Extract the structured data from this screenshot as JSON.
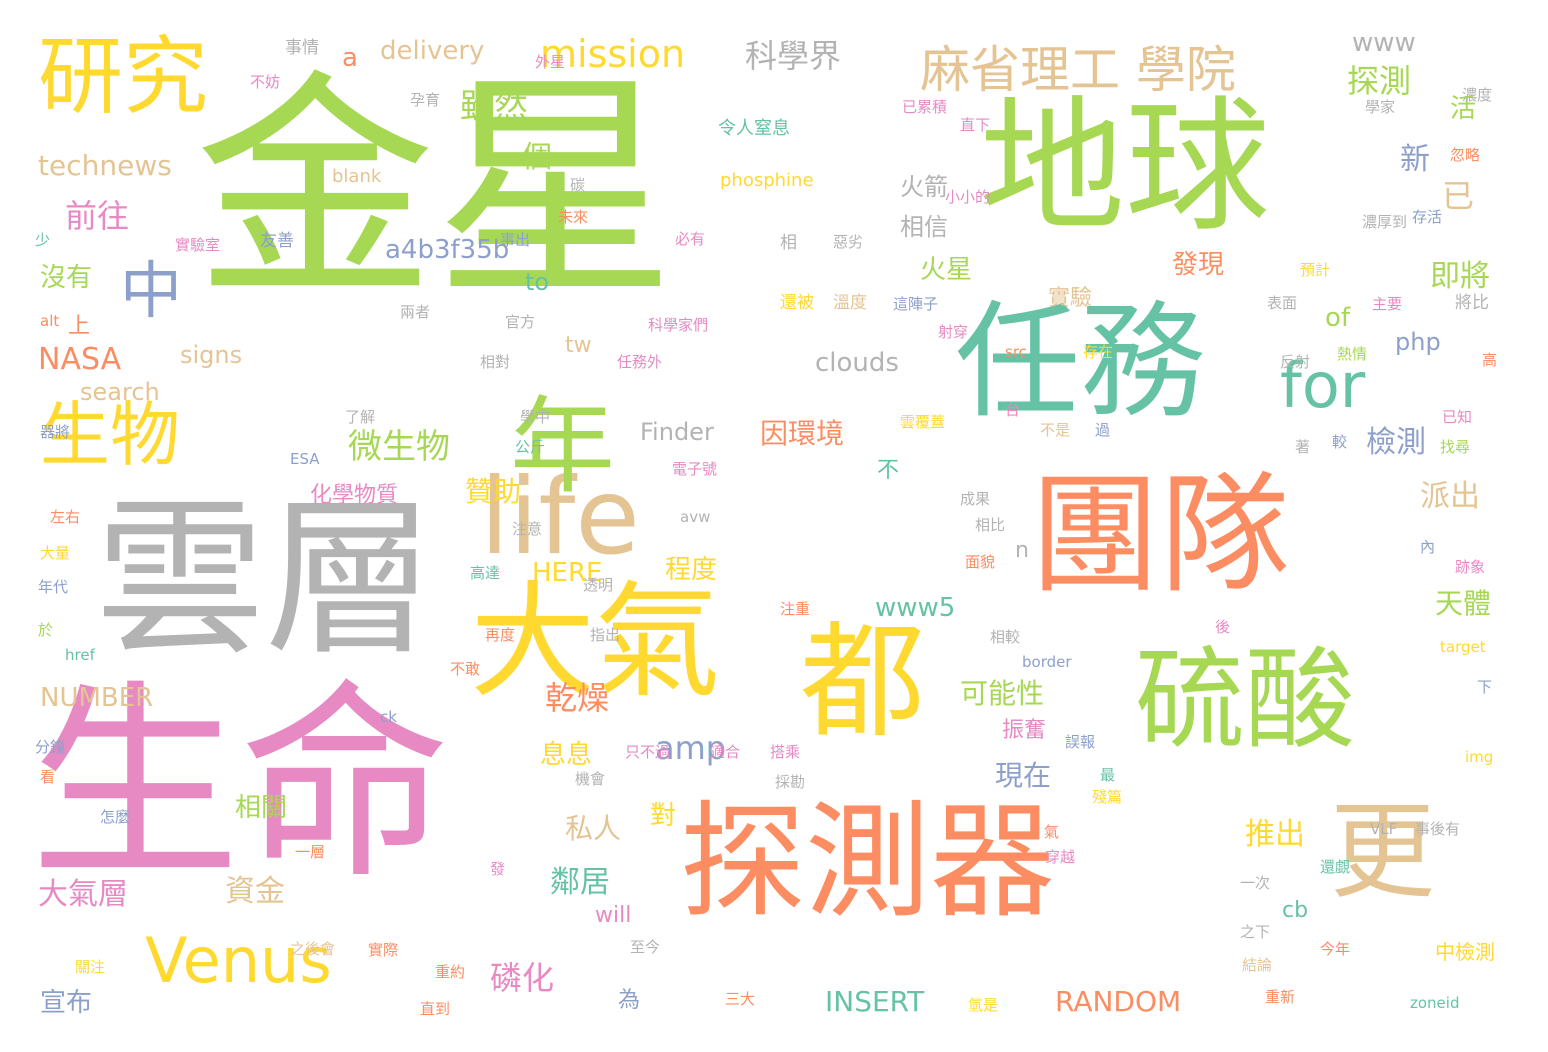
{
  "palette": {
    "green": "#a6d854",
    "orange": "#fc8d62",
    "yellow": "#ffd92f",
    "teal": "#66c2a5",
    "pink": "#e78ac3",
    "tan": "#e5c494",
    "gray": "#b3b3b3",
    "blue": "#8da0cb"
  },
  "words": [
    {
      "text": "金星",
      "color": "green"
    },
    {
      "text": "生命",
      "color": "pink"
    },
    {
      "text": "雲層",
      "color": "gray"
    },
    {
      "text": "地球",
      "color": "green"
    },
    {
      "text": "團隊",
      "color": "orange"
    },
    {
      "text": "任務",
      "color": "teal"
    },
    {
      "text": "探測器",
      "color": "orange"
    },
    {
      "text": "大氣",
      "color": "yellow"
    },
    {
      "text": "都",
      "color": "yellow"
    },
    {
      "text": "硫酸",
      "color": "green"
    },
    {
      "text": "更",
      "color": "tan"
    },
    {
      "text": "life",
      "color": "tan"
    },
    {
      "text": "年",
      "color": "green"
    },
    {
      "text": "研究",
      "color": "yellow"
    },
    {
      "text": "生物",
      "color": "yellow"
    },
    {
      "text": "Venus",
      "color": "yellow"
    },
    {
      "text": "for",
      "color": "teal"
    },
    {
      "text": "中",
      "color": "blue"
    },
    {
      "text": "麻省理工 學院",
      "color": "tan"
    },
    {
      "text": "mission",
      "color": "yellow"
    },
    {
      "text": "科學界",
      "color": "gray"
    },
    {
      "text": "delivery",
      "color": "tan"
    },
    {
      "text": "a",
      "color": "orange"
    },
    {
      "text": "事情",
      "color": "gray"
    },
    {
      "text": "雖然",
      "color": "green"
    },
    {
      "text": "一個",
      "color": "green"
    },
    {
      "text": "technews",
      "color": "tan"
    },
    {
      "text": "前往",
      "color": "pink"
    },
    {
      "text": "a4b3f35b",
      "color": "blue"
    },
    {
      "text": "微生物",
      "color": "green"
    },
    {
      "text": "火星",
      "color": "green"
    },
    {
      "text": "NASA",
      "color": "orange"
    },
    {
      "text": "amp",
      "color": "blue"
    },
    {
      "text": "www",
      "color": "gray"
    },
    {
      "text": "探測",
      "color": "green"
    },
    {
      "text": "新",
      "color": "blue"
    },
    {
      "text": "已",
      "color": "tan"
    },
    {
      "text": "即將",
      "color": "green"
    },
    {
      "text": "of",
      "color": "green"
    },
    {
      "text": "活",
      "color": "green"
    },
    {
      "text": "因環境",
      "color": "orange"
    },
    {
      "text": "檢測",
      "color": "blue"
    },
    {
      "text": "派出",
      "color": "tan"
    },
    {
      "text": "化學物質",
      "color": "pink"
    },
    {
      "text": "贊助",
      "color": "yellow"
    },
    {
      "text": "www5",
      "color": "teal"
    },
    {
      "text": "可能性",
      "color": "green"
    },
    {
      "text": "乾燥",
      "color": "orange"
    },
    {
      "text": "現在",
      "color": "blue"
    },
    {
      "text": "息息",
      "color": "yellow"
    },
    {
      "text": "推出",
      "color": "yellow"
    },
    {
      "text": "天體",
      "color": "green"
    },
    {
      "text": "相關",
      "color": "green"
    },
    {
      "text": "私人",
      "color": "tan"
    },
    {
      "text": "資金",
      "color": "tan"
    },
    {
      "text": "大氣層",
      "color": "pink"
    },
    {
      "text": "鄰居",
      "color": "teal"
    },
    {
      "text": "磷化",
      "color": "pink"
    },
    {
      "text": "cb",
      "color": "teal"
    },
    {
      "text": "INSERT",
      "color": "teal"
    },
    {
      "text": "RANDOM",
      "color": "orange"
    },
    {
      "text": "宣布",
      "color": "blue"
    },
    {
      "text": "對",
      "color": "yellow"
    },
    {
      "text": "振奮",
      "color": "pink"
    },
    {
      "text": "clouds",
      "color": "gray"
    },
    {
      "text": "php",
      "color": "blue"
    },
    {
      "text": "HERE",
      "color": "yellow"
    },
    {
      "text": "程度",
      "color": "yellow"
    },
    {
      "text": "NUMBER",
      "color": "tan"
    },
    {
      "text": "search",
      "color": "tan"
    },
    {
      "text": "signs",
      "color": "tan"
    },
    {
      "text": "Finder",
      "color": "gray"
    },
    {
      "text": "沒有",
      "color": "green"
    },
    {
      "text": "to",
      "color": "teal"
    },
    {
      "text": "tw",
      "color": "tan"
    },
    {
      "text": "相信",
      "color": "gray"
    },
    {
      "text": "火箭",
      "color": "gray"
    },
    {
      "text": "不",
      "color": "teal"
    },
    {
      "text": "發現",
      "color": "orange"
    },
    {
      "text": "實驗",
      "color": "tan"
    },
    {
      "text": "上",
      "color": "orange"
    },
    {
      "text": "n",
      "color": "gray"
    },
    {
      "text": "will",
      "color": "pink"
    },
    {
      "text": "為",
      "color": "blue"
    },
    {
      "text": "phosphine",
      "color": "yellow"
    },
    {
      "text": "blank",
      "color": "tan"
    },
    {
      "text": "令人窒息",
      "color": "teal"
    },
    {
      "text": "科學家們",
      "color": "pink"
    },
    {
      "text": "任務外",
      "color": "pink"
    },
    {
      "text": "實驗室",
      "color": "pink"
    },
    {
      "text": "友善",
      "color": "blue"
    },
    {
      "text": "事出",
      "color": "blue"
    },
    {
      "text": "必有",
      "color": "pink"
    },
    {
      "text": "相",
      "color": "gray"
    },
    {
      "text": "惡劣",
      "color": "gray"
    },
    {
      "text": "還被",
      "color": "yellow"
    },
    {
      "text": "溫度",
      "color": "tan"
    },
    {
      "text": "這陣子",
      "color": "blue"
    },
    {
      "text": "射穿",
      "color": "pink"
    },
    {
      "text": "表面",
      "color": "gray"
    },
    {
      "text": "熱情",
      "color": "green"
    },
    {
      "text": "將比",
      "color": "gray"
    },
    {
      "text": "主要",
      "color": "pink"
    },
    {
      "text": "雲覆蓋",
      "color": "yellow"
    },
    {
      "text": "電子號",
      "color": "pink"
    },
    {
      "text": "過",
      "color": "blue"
    },
    {
      "text": "較",
      "color": "blue"
    },
    {
      "text": "找尋",
      "color": "green"
    },
    {
      "text": "已知",
      "color": "pink"
    },
    {
      "text": "高",
      "color": "orange"
    },
    {
      "text": "反射",
      "color": "gray"
    },
    {
      "text": "存在",
      "color": "yellow"
    },
    {
      "text": "src",
      "color": "orange"
    },
    {
      "text": "官方",
      "color": "gray"
    },
    {
      "text": "兩者",
      "color": "gray"
    },
    {
      "text": "相對",
      "color": "gray"
    },
    {
      "text": "了解",
      "color": "gray"
    },
    {
      "text": "學中",
      "color": "gray"
    },
    {
      "text": "公斤",
      "color": "teal"
    },
    {
      "text": "ESA",
      "color": "blue"
    },
    {
      "text": "器將",
      "color": "blue"
    },
    {
      "text": "左右",
      "color": "orange"
    },
    {
      "text": "大量",
      "color": "yellow"
    },
    {
      "text": "年代",
      "color": "blue"
    },
    {
      "text": "於",
      "color": "green"
    },
    {
      "text": "href",
      "color": "teal"
    },
    {
      "text": "alt",
      "color": "orange"
    },
    {
      "text": "少",
      "color": "teal"
    },
    {
      "text": "分鐘",
      "color": "blue"
    },
    {
      "text": "看",
      "color": "orange"
    },
    {
      "text": "怎麼",
      "color": "blue"
    },
    {
      "text": "一層",
      "color": "orange"
    },
    {
      "text": "關注",
      "color": "yellow"
    },
    {
      "text": "重約",
      "color": "orange"
    },
    {
      "text": "直到",
      "color": "orange"
    },
    {
      "text": "之後會",
      "color": "tan"
    },
    {
      "text": "實際",
      "color": "orange"
    },
    {
      "text": "至今",
      "color": "gray"
    },
    {
      "text": "三大",
      "color": "orange"
    },
    {
      "text": "氫是",
      "color": "yellow"
    },
    {
      "text": "重新",
      "color": "orange"
    },
    {
      "text": "結論",
      "color": "tan"
    },
    {
      "text": "今年",
      "color": "orange"
    },
    {
      "text": "中檢測",
      "color": "yellow"
    },
    {
      "text": "zoneid",
      "color": "teal"
    },
    {
      "text": "之下",
      "color": "gray"
    },
    {
      "text": "一次",
      "color": "gray"
    },
    {
      "text": "還覷",
      "color": "teal"
    },
    {
      "text": "穿越",
      "color": "pink"
    },
    {
      "text": "發",
      "color": "pink"
    },
    {
      "text": "氣",
      "color": "orange"
    },
    {
      "text": "殘篇",
      "color": "yellow"
    },
    {
      "text": "最",
      "color": "teal"
    },
    {
      "text": "採勘",
      "color": "gray"
    },
    {
      "text": "搭乘",
      "color": "pink"
    },
    {
      "text": "機會",
      "color": "gray"
    },
    {
      "text": "只不過",
      "color": "pink"
    },
    {
      "text": "適合",
      "color": "pink"
    },
    {
      "text": "誤報",
      "color": "blue"
    },
    {
      "text": "VLF",
      "color": "gray"
    },
    {
      "text": "事後有",
      "color": "gray"
    },
    {
      "text": "img",
      "color": "yellow"
    },
    {
      "text": "下",
      "color": "blue"
    },
    {
      "text": "border",
      "color": "blue"
    },
    {
      "text": "target",
      "color": "yellow"
    },
    {
      "text": "後",
      "color": "pink"
    },
    {
      "text": "跡象",
      "color": "pink"
    },
    {
      "text": "內",
      "color": "blue"
    },
    {
      "text": "相較",
      "color": "gray"
    },
    {
      "text": "指出",
      "color": "gray"
    },
    {
      "text": "不敢",
      "color": "orange"
    },
    {
      "text": "透明",
      "color": "gray"
    },
    {
      "text": "再度",
      "color": "orange"
    },
    {
      "text": "注重",
      "color": "orange"
    },
    {
      "text": "高達",
      "color": "teal"
    },
    {
      "text": "注意",
      "color": "gray"
    },
    {
      "text": "面貌",
      "color": "orange"
    },
    {
      "text": "相比",
      "color": "gray"
    },
    {
      "text": "成果",
      "color": "gray"
    },
    {
      "text": "avw",
      "color": "gray"
    },
    {
      "text": "ck",
      "color": "blue"
    },
    {
      "text": "台",
      "color": "pink"
    },
    {
      "text": "不是",
      "color": "tan"
    },
    {
      "text": "著",
      "color": "gray"
    },
    {
      "text": "不妨",
      "color": "pink"
    },
    {
      "text": "外星",
      "color": "pink"
    },
    {
      "text": "孕育",
      "color": "gray"
    },
    {
      "text": "已累積",
      "color": "pink"
    },
    {
      "text": "直下",
      "color": "pink"
    },
    {
      "text": "學家",
      "color": "gray"
    },
    {
      "text": "濃度",
      "color": "gray"
    },
    {
      "text": "忽略",
      "color": "orange"
    },
    {
      "text": "存活",
      "color": "blue"
    },
    {
      "text": "濃厚到",
      "color": "gray"
    },
    {
      "text": "預計",
      "color": "yellow"
    },
    {
      "text": "小小的",
      "color": "pink"
    },
    {
      "text": "碳",
      "color": "gray"
    },
    {
      "text": "未來",
      "color": "orange"
    }
  ]
}
